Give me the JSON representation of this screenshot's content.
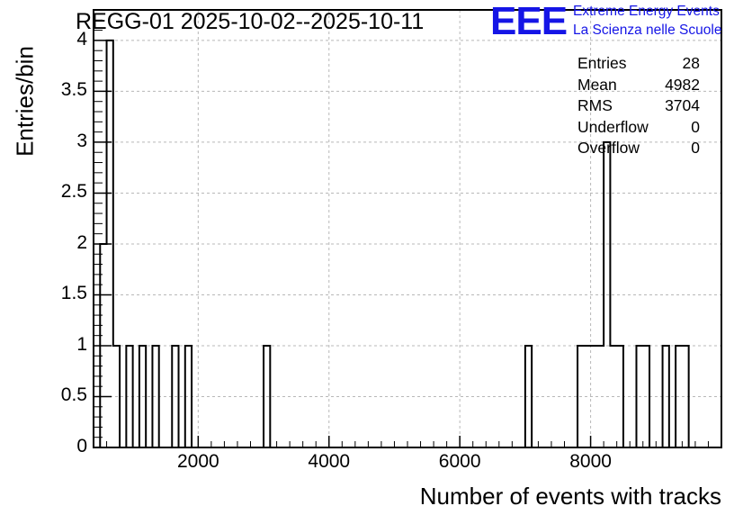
{
  "title": "REGG-01 2025-10-02--2025-10-11",
  "logo": {
    "mark": "EEE",
    "line1": "Extreme Energy Events",
    "line2": "La Scienza nelle Scuole",
    "color": "#1515e6"
  },
  "stats": [
    {
      "label": "Entries",
      "value": "28"
    },
    {
      "label": "Mean",
      "value": "4982"
    },
    {
      "label": "RMS",
      "value": "3704"
    },
    {
      "label": "Underflow",
      "value": "0"
    },
    {
      "label": "Overflow",
      "value": "0"
    }
  ],
  "chart_data": {
    "type": "histogram",
    "title": "REGG-01 2025-10-02--2025-10-11",
    "xlabel": "Number of events with tracks",
    "ylabel": "Entries/bin",
    "xlim": [
      400,
      10000
    ],
    "ylim": [
      0,
      4.3
    ],
    "grid": true,
    "x_ticks": [
      {
        "value": 2000,
        "label": "2000"
      },
      {
        "value": 4000,
        "label": "4000"
      },
      {
        "value": 6000,
        "label": "6000"
      },
      {
        "value": 8000,
        "label": "8000"
      }
    ],
    "y_ticks": [
      {
        "value": 0,
        "label": "0"
      },
      {
        "value": 0.5,
        "label": "0.5"
      },
      {
        "value": 1,
        "label": "1"
      },
      {
        "value": 1.5,
        "label": "1.5"
      },
      {
        "value": 2,
        "label": "2"
      },
      {
        "value": 2.5,
        "label": "2.5"
      },
      {
        "value": 3,
        "label": "3"
      },
      {
        "value": 3.5,
        "label": "3.5"
      },
      {
        "value": 4,
        "label": "4"
      }
    ],
    "bin_width": 100,
    "bins": [
      {
        "x0": 500,
        "x1": 600,
        "count": 2
      },
      {
        "x0": 600,
        "x1": 700,
        "count": 4
      },
      {
        "x0": 700,
        "x1": 800,
        "count": 1
      },
      {
        "x0": 900,
        "x1": 1000,
        "count": 1
      },
      {
        "x0": 1100,
        "x1": 1200,
        "count": 1
      },
      {
        "x0": 1300,
        "x1": 1400,
        "count": 1
      },
      {
        "x0": 1600,
        "x1": 1700,
        "count": 1
      },
      {
        "x0": 1800,
        "x1": 1900,
        "count": 1
      },
      {
        "x0": 3000,
        "x1": 3100,
        "count": 1
      },
      {
        "x0": 7000,
        "x1": 7100,
        "count": 1
      },
      {
        "x0": 7800,
        "x1": 7900,
        "count": 1
      },
      {
        "x0": 7900,
        "x1": 8000,
        "count": 1
      },
      {
        "x0": 8000,
        "x1": 8100,
        "count": 1
      },
      {
        "x0": 8100,
        "x1": 8200,
        "count": 1
      },
      {
        "x0": 8200,
        "x1": 8300,
        "count": 3
      },
      {
        "x0": 8300,
        "x1": 8400,
        "count": 1
      },
      {
        "x0": 8400,
        "x1": 8500,
        "count": 1
      },
      {
        "x0": 8700,
        "x1": 8800,
        "count": 1
      },
      {
        "x0": 8800,
        "x1": 8900,
        "count": 1
      },
      {
        "x0": 9100,
        "x1": 9200,
        "count": 1
      },
      {
        "x0": 9300,
        "x1": 9400,
        "count": 1
      },
      {
        "x0": 9400,
        "x1": 9500,
        "count": 1
      }
    ]
  }
}
